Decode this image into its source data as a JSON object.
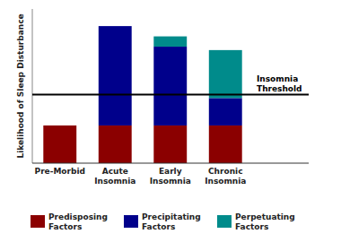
{
  "chart_data": {
    "type": "bar",
    "stacked": true,
    "categories": [
      "Pre-Morbid",
      "Acute\nInsomnia",
      "Early\nInsomnia",
      "Chronic\nInsomnia"
    ],
    "series": [
      {
        "name": "Predisposing\nFactors",
        "color": "#8B0000",
        "values": [
          2.2,
          2.2,
          2.2,
          2.2
        ]
      },
      {
        "name": "Precipitating\nFactors",
        "color": "#00008B",
        "values": [
          0.0,
          5.8,
          4.6,
          1.6
        ]
      },
      {
        "name": "Perpetuating\nFactors",
        "color": "#008B8B",
        "values": [
          0.0,
          0.0,
          0.6,
          2.8
        ]
      }
    ],
    "ylabel": "Likelihood of Sleep Disturbance",
    "ylim": [
      0,
      9.0
    ],
    "annotations": [
      {
        "text": "Insomnia\nThreshold",
        "value": 4.0
      }
    ],
    "tick_labels": "x",
    "grid": false,
    "legend": "bottom"
  }
}
